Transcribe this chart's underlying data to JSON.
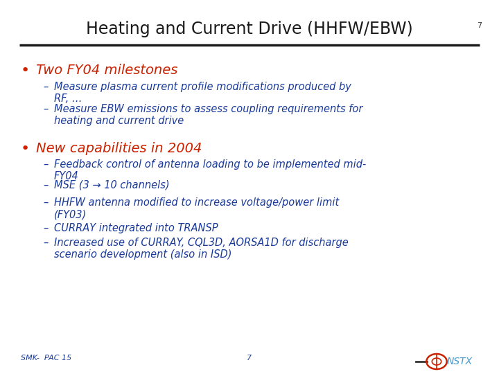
{
  "title": "Heating and Current Drive (HHFW/EBW)",
  "title_color": "#1a1a1a",
  "title_fontsize": 17,
  "bg_color": "#ffffff",
  "slide_bg": "#ffffff",
  "bullet1_text": "Two FY04 milestones",
  "bullet1_color": "#cc2200",
  "bullet1_fontsize": 14,
  "bullet2_text": "New capabilities in 2004",
  "bullet2_color": "#cc2200",
  "bullet2_fontsize": 14,
  "sub_color": "#1a3a99",
  "sub_fontsize": 10.5,
  "sub1_items": [
    "Measure plasma current profile modifications produced by\nRF, …",
    "Measure EBW emissions to assess coupling requirements for\nheating and current drive"
  ],
  "sub2_items": [
    "Feedback control of antenna loading to be implemented mid-\nFY04",
    "MSE (3 → 10 channels)",
    "HHFW antenna modified to increase voltage/power limit\n(FY03)",
    "CURRAY integrated into TRANSP",
    "Increased use of CURRAY, CQL3D, AORSA1D for discharge\nscenario development (also in ISD)"
  ],
  "footer_left": "SMK-  PAC 15",
  "footer_center": "7",
  "footer_right_num": "7",
  "nstx_color": "#4499cc",
  "line_color": "#1a1a1a",
  "dash_color": "#1a3a99"
}
